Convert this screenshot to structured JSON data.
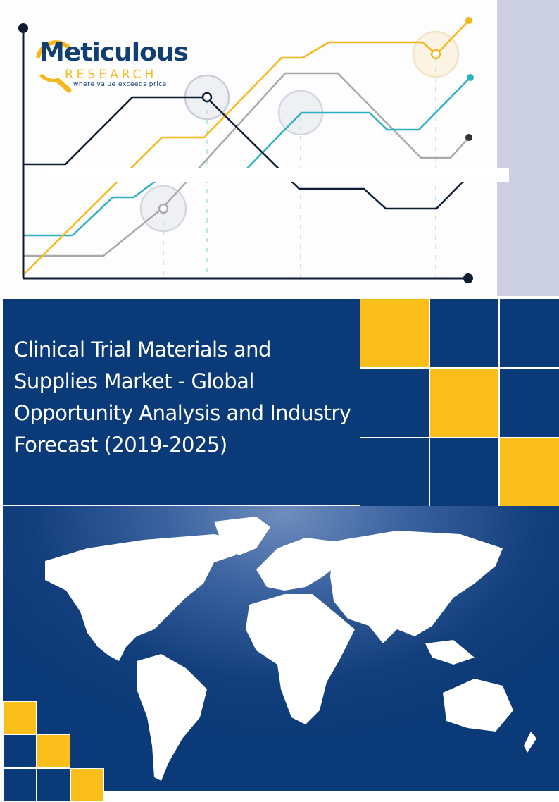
{
  "logo": {
    "name": "Meticulous",
    "sub": "RESEARCH",
    "tagline": "where value exceeds price"
  },
  "title": "Clinical Trial Materials and Supplies Market - Global Opportunity Analysis and Industry Forecast (2019-2025)",
  "colors": {
    "navy": "#0b3a78",
    "yellow": "#fbbf1c",
    "teal": "#2fb0c0",
    "gray": "#a9a9a9",
    "dark": "#0d1b33",
    "lavender": "#cdd0e3"
  }
}
